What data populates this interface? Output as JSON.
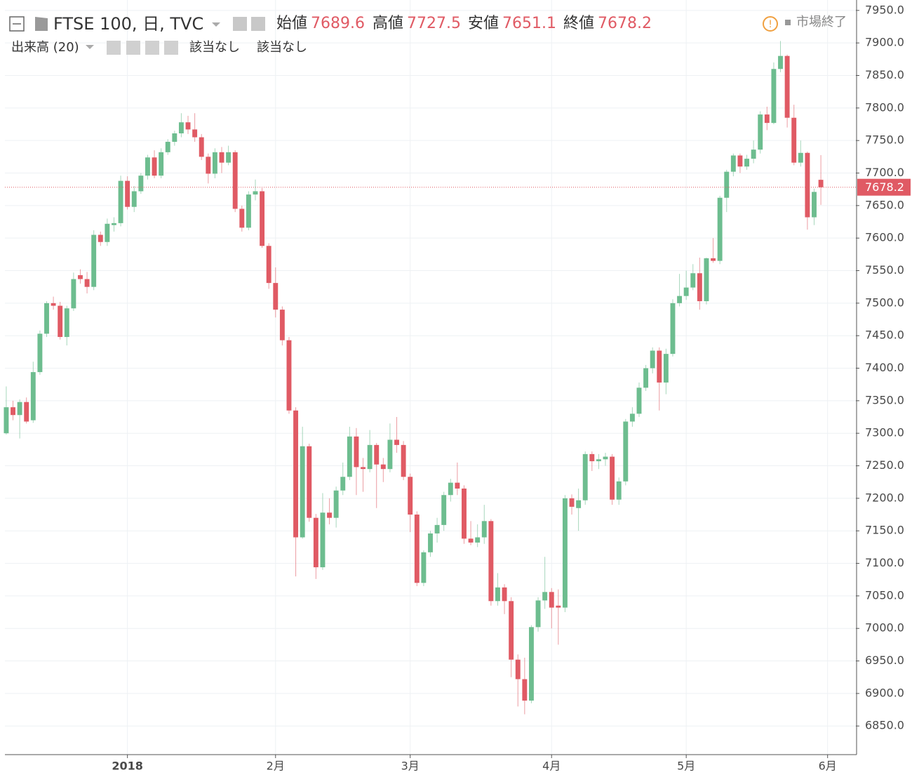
{
  "chart_data": {
    "type": "candlestick",
    "title": "FTSE 100, 日, TVC",
    "ohlc_labels": [
      "始値",
      "高値",
      "安値",
      "終値"
    ],
    "volume_label": "出来高 (20)",
    "na_labels": [
      "該当なし",
      "該当なし"
    ],
    "status": "市場終了",
    "up_color": "#6dbd8f",
    "down_color": "#e05a64",
    "grid": true,
    "ylim": [
      6806,
      7966
    ],
    "xlim": [
      -0.2,
      126.2
    ],
    "yticks": [
      {
        "value": 6850,
        "label": "6850.0"
      },
      {
        "value": 6900,
        "label": "6900.0"
      },
      {
        "value": 6950,
        "label": "6950.0"
      },
      {
        "value": 7000,
        "label": "7000.0"
      },
      {
        "value": 7050,
        "label": "7050.0"
      },
      {
        "value": 7100,
        "label": "7100.0"
      },
      {
        "value": 7150,
        "label": "7150.0"
      },
      {
        "value": 7200,
        "label": "7200.0"
      },
      {
        "value": 7250,
        "label": "7250.0"
      },
      {
        "value": 7300,
        "label": "7300.0"
      },
      {
        "value": 7350,
        "label": "7350.0"
      },
      {
        "value": 7400,
        "label": "7400.0"
      },
      {
        "value": 7450,
        "label": "7450.0"
      },
      {
        "value": 7500,
        "label": "7500.0"
      },
      {
        "value": 7550,
        "label": "7550.0"
      },
      {
        "value": 7600,
        "label": "7600.0"
      },
      {
        "value": 7650,
        "label": "7650.0"
      },
      {
        "value": 7700,
        "label": "7700.0"
      },
      {
        "value": 7750,
        "label": "7750.0"
      },
      {
        "value": 7800,
        "label": "7800.0"
      },
      {
        "value": 7850,
        "label": "7850.0"
      },
      {
        "value": 7900,
        "label": "7900.0"
      },
      {
        "value": 7950,
        "label": "7950.0"
      }
    ],
    "xticks": [
      {
        "value": 18,
        "label": "2018"
      },
      {
        "value": 40,
        "label": "2月"
      },
      {
        "value": 60,
        "label": "3月"
      },
      {
        "value": 81,
        "label": "4月"
      },
      {
        "value": 101,
        "label": "5月"
      },
      {
        "value": 122,
        "label": "6月"
      }
    ],
    "open": [
      7300,
      7340,
      7328,
      7348,
      7320,
      7394,
      7453,
      7500,
      7496,
      7448,
      7492,
      7543,
      7537,
      7525,
      7605,
      7594,
      7620,
      7623,
      7688,
      7648,
      7672,
      7696,
      7724,
      7696,
      7732,
      7748,
      7761,
      7778,
      7767,
      7755,
      7725,
      7699,
      7732,
      7716,
      7732,
      7645,
      7616,
      7667,
      7672,
      7588,
      7531,
      7490,
      7443,
      7335,
      7140,
      7280,
      7170,
      7094,
      7178,
      7170,
      7212,
      7233,
      7295,
      7248,
      7245,
      7282,
      7252,
      7245,
      7290,
      7282,
      7233,
      7175,
      7070,
      7117,
      7146,
      7159,
      7205,
      7224,
      7215,
      7138,
      7132,
      7140,
      7165,
      7042,
      7063,
      7042,
      6952,
      6922,
      6889,
      7002,
      7043,
      7056,
      7035,
      7032,
      7200,
      7185,
      7197,
      7268,
      7257,
      7260,
      7264,
      7198,
      7226,
      7318,
      7330,
      7370,
      7400,
      7427,
      7378,
      7422,
      7500,
      7511,
      7524,
      7546,
      7503,
      7569,
      7565,
      7662,
      7702,
      7727,
      7710,
      7722,
      7736,
      7790,
      7777,
      7860,
      7880,
      7785,
      7716,
      7731,
      7632,
      7689.6
    ],
    "high": [
      7372,
      7350,
      7352,
      7355,
      7410,
      7458,
      7503,
      7510,
      7502,
      7496,
      7547,
      7552,
      7548,
      7612,
      7610,
      7630,
      7632,
      7696,
      7695,
      7680,
      7700,
      7728,
      7735,
      7738,
      7752,
      7765,
      7792,
      7788,
      7792,
      7760,
      7730,
      7738,
      7740,
      7742,
      7735,
      7650,
      7672,
      7690,
      7677,
      7592,
      7555,
      7495,
      7448,
      7340,
      7310,
      7284,
      7176,
      7208,
      7200,
      7218,
      7255,
      7310,
      7308,
      7262,
      7305,
      7285,
      7262,
      7315,
      7325,
      7288,
      7238,
      7180,
      7120,
      7150,
      7170,
      7210,
      7230,
      7255,
      7220,
      7165,
      7160,
      7190,
      7168,
      7085,
      7068,
      7048,
      6960,
      6955,
      7005,
      7048,
      7110,
      7062,
      7060,
      7205,
      7206,
      7215,
      7272,
      7272,
      7268,
      7270,
      7268,
      7232,
      7322,
      7340,
      7378,
      7405,
      7432,
      7432,
      7430,
      7506,
      7545,
      7550,
      7560,
      7570,
      7570,
      7600,
      7665,
      7705,
      7730,
      7730,
      7728,
      7750,
      7795,
      7802,
      7870,
      7903,
      7882,
      7805,
      7750,
      7733,
      7676,
      7727.5
    ],
    "low": [
      7298,
      7320,
      7292,
      7315,
      7316,
      7390,
      7448,
      7490,
      7444,
      7435,
      7488,
      7530,
      7515,
      7520,
      7588,
      7588,
      7610,
      7618,
      7644,
      7640,
      7668,
      7690,
      7692,
      7692,
      7728,
      7742,
      7755,
      7760,
      7748,
      7720,
      7684,
      7692,
      7700,
      7712,
      7640,
      7610,
      7612,
      7658,
      7585,
      7522,
      7478,
      7435,
      7330,
      7080,
      7138,
      7164,
      7076,
      7090,
      7160,
      7155,
      7205,
      7228,
      7205,
      7210,
      7240,
      7185,
      7225,
      7240,
      7270,
      7228,
      7148,
      7065,
      7065,
      7110,
      7132,
      7150,
      7195,
      7205,
      7130,
      7128,
      7125,
      7130,
      7035,
      7035,
      7022,
      6925,
      6880,
      6868,
      6885,
      6995,
      7030,
      7000,
      6975,
      7025,
      7175,
      7150,
      7190,
      7242,
      7245,
      7250,
      7190,
      7190,
      7220,
      7310,
      7325,
      7365,
      7392,
      7335,
      7360,
      7418,
      7495,
      7505,
      7520,
      7490,
      7498,
      7562,
      7560,
      7640,
      7695,
      7700,
      7705,
      7715,
      7730,
      7766,
      7775,
      7855,
      7770,
      7712,
      7710,
      7613,
      7620,
      7651.1
    ],
    "close": [
      7340,
      7328,
      7348,
      7318,
      7394,
      7453,
      7500,
      7496,
      7448,
      7492,
      7537,
      7537,
      7525,
      7605,
      7594,
      7622,
      7623,
      7688,
      7648,
      7672,
      7696,
      7724,
      7696,
      7732,
      7748,
      7761,
      7778,
      7767,
      7755,
      7725,
      7699,
      7732,
      7716,
      7732,
      7645,
      7616,
      7667,
      7672,
      7588,
      7531,
      7490,
      7443,
      7335,
      7140,
      7280,
      7170,
      7094,
      7178,
      7170,
      7212,
      7233,
      7295,
      7248,
      7245,
      7282,
      7252,
      7245,
      7290,
      7282,
      7233,
      7175,
      7070,
      7117,
      7146,
      7159,
      7205,
      7224,
      7215,
      7138,
      7132,
      7140,
      7165,
      7042,
      7063,
      7042,
      6952,
      6922,
      6889,
      7002,
      7043,
      7056,
      7032,
      7032,
      7200,
      7187,
      7197,
      7268,
      7257,
      7260,
      7264,
      7198,
      7226,
      7318,
      7330,
      7370,
      7400,
      7427,
      7378,
      7422,
      7500,
      7511,
      7524,
      7546,
      7503,
      7569,
      7565,
      7662,
      7702,
      7727,
      7710,
      7722,
      7736,
      7790,
      7777,
      7860,
      7880,
      7785,
      7716,
      7731,
      7632,
      7671,
      7678.2
    ]
  }
}
